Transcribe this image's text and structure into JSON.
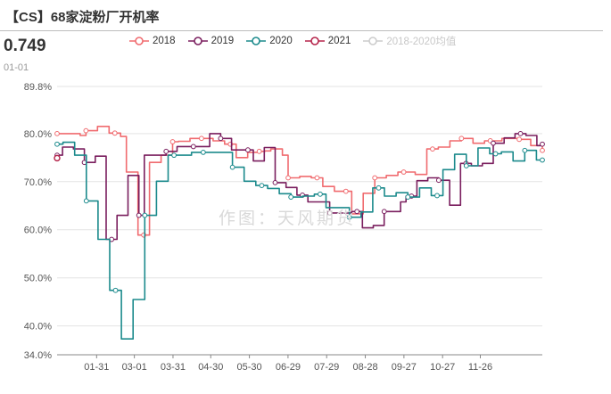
{
  "header": {
    "title": "【CS】68家淀粉厂开机率",
    "current_value": "0.749",
    "current_date": "01-01",
    "watermark": "作图：天风期货"
  },
  "legend": [
    {
      "name": "2018",
      "color": "#f06b6f",
      "active": true
    },
    {
      "name": "2019",
      "color": "#7a1e5e",
      "active": true
    },
    {
      "name": "2020",
      "color": "#1b8a8c",
      "active": true
    },
    {
      "name": "2021",
      "color": "#b5234a",
      "active": true
    },
    {
      "name": "2018-2020均值",
      "color": "#cccccc",
      "active": false
    }
  ],
  "chart_data": {
    "type": "line",
    "yticks": [
      "89.8%",
      "80.0%",
      "70.0%",
      "60.0%",
      "50.0%",
      "40.0%",
      "34.0%"
    ],
    "ytick_values": [
      89.8,
      80,
      70,
      60,
      50,
      40,
      34
    ],
    "ylim": [
      34,
      89.8
    ],
    "xlim": [
      0,
      54
    ],
    "xticks": [
      "01-31",
      "03-01",
      "03-31",
      "04-30",
      "05-30",
      "06-29",
      "07-29",
      "08-28",
      "09-27",
      "10-27",
      "11-26"
    ],
    "xtick_positions": [
      4.4,
      8.6,
      12.9,
      17.1,
      21.4,
      25.7,
      30.0,
      34.3,
      38.6,
      42.9,
      47.1
    ],
    "grid": true,
    "series": [
      {
        "name": "2018",
        "color": "#f06b6f",
        "values": [
          80,
          80,
          80,
          80,
          79.6,
          80.6,
          80.6,
          81.5,
          81.5,
          80.1,
          80.1,
          79.4,
          72,
          72,
          58.9,
          58.9,
          74,
          74,
          75.5,
          75.5,
          78.3,
          78.4,
          78.4,
          79,
          79,
          79,
          79,
          78.5,
          78.5,
          77.8,
          77.8,
          75,
          75,
          76.1,
          76.1,
          76.3,
          76.4,
          76.8,
          76.8,
          75.5,
          70.8,
          70.8,
          71.1,
          71.1,
          70.8,
          70.8,
          69,
          69,
          68,
          68,
          68,
          63.3,
          63.3,
          67.6,
          67.6,
          70.8,
          70.8,
          71.3,
          71.3,
          72,
          72,
          72,
          71.5,
          71.5,
          76.8,
          76.8,
          77.2,
          77.2,
          78.5,
          78.5,
          79,
          79,
          78,
          78,
          78.5,
          78.5,
          78.5,
          79,
          79,
          79,
          78.8,
          78.8,
          77.5,
          77.5,
          76.5
        ]
      },
      {
        "name": "2019",
        "color": "#7a1e5e",
        "values": [
          75.5,
          77.2,
          77.2,
          76.8,
          76.8,
          74,
          74,
          75.3,
          75.3,
          58,
          58,
          63,
          63,
          71.3,
          71.3,
          63,
          75.5,
          75.5,
          75.5,
          75.5,
          76.3,
          76.3,
          77.3,
          77.3,
          77.3,
          77.3,
          77.3,
          77.3,
          80,
          80,
          79,
          79,
          76.6,
          76.6,
          76.6,
          76.6,
          74.3,
          74.3,
          77.1,
          77.1,
          69.8,
          69.8,
          68.8,
          68.8,
          67.2,
          67.2,
          65.8,
          65.8,
          65.8,
          65.8,
          63.5,
          63.5,
          63.5,
          63.5,
          63.8,
          63.8,
          60.4,
          60.4,
          60.9,
          60.9,
          63.8,
          63.8,
          63.8,
          65.8,
          67,
          67,
          70.2,
          70.2,
          70.8,
          70.8,
          70.3,
          70.3,
          65.1,
          65.1,
          73.8,
          73.8,
          73.3,
          73.3,
          73.8,
          73.8,
          78,
          78,
          79.1,
          79.1,
          80,
          80,
          79.6,
          79.6,
          77.5,
          77.8
        ]
      },
      {
        "name": "2020",
        "color": "#1b8a8c",
        "values": [
          77.8,
          78.2,
          78.2,
          75.5,
          75.5,
          66,
          66,
          58,
          58,
          47.4,
          47.4,
          37.3,
          37.3,
          45.5,
          45.5,
          63,
          63,
          70.1,
          70.1,
          75.5,
          75.5,
          75.5,
          75.5,
          76.1,
          76.1,
          76.1,
          76.1,
          76.1,
          76.1,
          76.1,
          73,
          73,
          70.1,
          70.1,
          69.2,
          69.2,
          68.6,
          68.6,
          67.5,
          67.5,
          66.8,
          66.8,
          67,
          67,
          67.4,
          67.4,
          64.6,
          64.6,
          64.6,
          64.6,
          62.6,
          62.6,
          63.7,
          63.7,
          68.7,
          68.7,
          67,
          67,
          67.7,
          67.7,
          66.8,
          66.8,
          68.7,
          68.7,
          67.1,
          67.1,
          72.5,
          72.5,
          75.7,
          75.7,
          73.3,
          73.3,
          77,
          77,
          75.8,
          75.8,
          76.2,
          76.2,
          74.3,
          74.3,
          76.5,
          76.5,
          74.5,
          74.5
        ]
      },
      {
        "name": "2021",
        "color": "#b5234a",
        "values": [
          74.9
        ]
      }
    ]
  }
}
